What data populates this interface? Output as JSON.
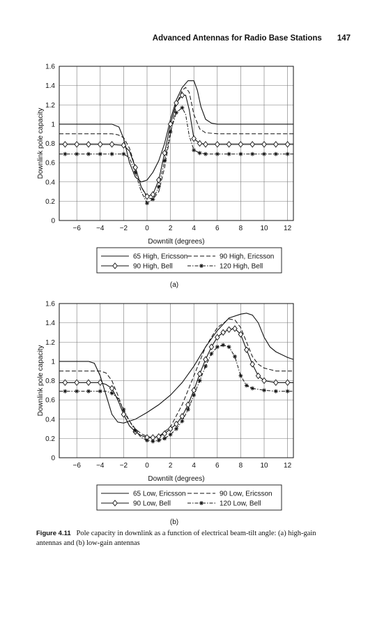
{
  "header": {
    "title": "Advanced Antennas for Radio Base Stations",
    "page_number": "147"
  },
  "caption": {
    "label": "Figure 4.11",
    "text": "Pole capacity in downlink as a function of electrical beam-tilt angle: (a) high-gain antennas and (b) low-gain antennas"
  },
  "chart_data": [
    {
      "type": "line",
      "panel_label": "(a)",
      "xlabel": "Downtilt (degrees)",
      "ylabel": "Downlink pole capacity",
      "xlim": [
        -7.5,
        12.5
      ],
      "ylim": [
        0,
        1.6
      ],
      "xticks": [
        -6,
        -4,
        -2,
        0,
        2,
        4,
        6,
        8,
        10,
        12
      ],
      "yticks": [
        0,
        0.2,
        0.4,
        0.6,
        0.8,
        1,
        1.2,
        1.4,
        1.6
      ],
      "grid": true,
      "legend_placement": "below",
      "series": [
        {
          "name": "65 High, Ericsson",
          "style": "solid",
          "marker": "none",
          "x": [
            -7.5,
            -3,
            -2.4,
            -2,
            -1.5,
            -1,
            -0.5,
            0,
            0.5,
            1,
            1.5,
            2,
            2.5,
            3,
            3.5,
            4,
            4.3,
            4.6,
            5,
            5.5,
            6,
            7,
            9,
            12.5
          ],
          "y": [
            1.0,
            1.0,
            0.97,
            0.85,
            0.6,
            0.45,
            0.4,
            0.42,
            0.5,
            0.62,
            0.8,
            1.05,
            1.25,
            1.38,
            1.45,
            1.45,
            1.35,
            1.18,
            1.05,
            1.01,
            1.0,
            1.0,
            1.0,
            1.0
          ]
        },
        {
          "name": "90 High, Ericsson",
          "style": "dash",
          "marker": "none",
          "x": [
            -7.5,
            -3,
            -2.5,
            -2,
            -1.5,
            -1,
            -0.5,
            0,
            0.5,
            1,
            1.5,
            2,
            2.5,
            3,
            3.3,
            3.6,
            4,
            4.5,
            5,
            6,
            8,
            12.5
          ],
          "y": [
            0.9,
            0.9,
            0.89,
            0.86,
            0.75,
            0.55,
            0.35,
            0.24,
            0.22,
            0.3,
            0.55,
            0.9,
            1.2,
            1.35,
            1.38,
            1.33,
            1.1,
            0.95,
            0.91,
            0.9,
            0.9,
            0.9
          ]
        },
        {
          "name": "90 High, Bell",
          "style": "solid",
          "marker": "diamond",
          "x": [
            -7.5,
            -7,
            -6,
            -5,
            -4,
            -3,
            -2,
            -1.5,
            -1,
            -0.5,
            0,
            0.5,
            1,
            1.5,
            2,
            2.5,
            3,
            3.3,
            3.6,
            4,
            4.5,
            5,
            6,
            7,
            8,
            9,
            10,
            11,
            12,
            12.5
          ],
          "y": [
            0.79,
            0.79,
            0.79,
            0.79,
            0.79,
            0.79,
            0.78,
            0.72,
            0.55,
            0.35,
            0.25,
            0.27,
            0.42,
            0.7,
            1.0,
            1.22,
            1.3,
            1.3,
            1.15,
            0.85,
            0.8,
            0.79,
            0.79,
            0.79,
            0.79,
            0.79,
            0.79,
            0.79,
            0.79,
            0.79
          ]
        },
        {
          "name": "120 High, Bell",
          "style": "dashdot",
          "marker": "star",
          "x": [
            -7.5,
            -7,
            -6,
            -5,
            -4,
            -3,
            -2,
            -1.5,
            -1,
            -0.5,
            0,
            0.5,
            1,
            1.5,
            2,
            2.5,
            3,
            3.3,
            3.6,
            4,
            4.5,
            5,
            6,
            7,
            8,
            9,
            10,
            11,
            12,
            12.5
          ],
          "y": [
            0.69,
            0.69,
            0.69,
            0.69,
            0.69,
            0.69,
            0.69,
            0.65,
            0.5,
            0.3,
            0.18,
            0.22,
            0.35,
            0.62,
            0.92,
            1.12,
            1.17,
            1.1,
            0.88,
            0.73,
            0.7,
            0.69,
            0.69,
            0.69,
            0.69,
            0.69,
            0.69,
            0.69,
            0.69,
            0.69
          ]
        }
      ]
    },
    {
      "type": "line",
      "panel_label": "(b)",
      "xlabel": "Downtilt (degrees)",
      "ylabel": "Downlink pole capacity",
      "xlim": [
        -7.5,
        12.5
      ],
      "ylim": [
        0,
        1.6
      ],
      "xticks": [
        -6,
        -4,
        -2,
        0,
        2,
        4,
        6,
        8,
        10,
        12
      ],
      "yticks": [
        0,
        0.2,
        0.4,
        0.6,
        0.8,
        1,
        1.2,
        1.4,
        1.6
      ],
      "grid": true,
      "legend_placement": "below",
      "series": [
        {
          "name": "65 Low, Ericsson",
          "style": "solid",
          "marker": "none",
          "x": [
            -7.5,
            -5,
            -4.5,
            -4,
            -3.5,
            -3,
            -2.5,
            -2,
            -1.5,
            -1,
            0,
            1,
            2,
            3,
            4,
            5,
            6,
            7,
            8,
            8.5,
            9,
            9.5,
            10,
            10.5,
            11,
            12,
            12.5
          ],
          "y": [
            1.0,
            1.0,
            0.98,
            0.85,
            0.65,
            0.45,
            0.37,
            0.36,
            0.38,
            0.4,
            0.47,
            0.55,
            0.65,
            0.78,
            0.95,
            1.15,
            1.32,
            1.45,
            1.49,
            1.5,
            1.48,
            1.4,
            1.25,
            1.15,
            1.1,
            1.04,
            1.02
          ]
        },
        {
          "name": "90 Low, Ericsson",
          "style": "dash",
          "marker": "none",
          "x": [
            -7.5,
            -4,
            -3.5,
            -3,
            -2.5,
            -2,
            -1.5,
            -1,
            -0.5,
            0,
            0.5,
            1,
            2,
            3,
            4,
            5,
            6,
            7,
            7.5,
            8,
            8.5,
            9,
            9.5,
            10,
            11,
            12,
            12.5
          ],
          "y": [
            0.9,
            0.9,
            0.88,
            0.8,
            0.65,
            0.48,
            0.38,
            0.3,
            0.25,
            0.22,
            0.21,
            0.22,
            0.32,
            0.55,
            0.85,
            1.15,
            1.35,
            1.44,
            1.43,
            1.35,
            1.2,
            1.05,
            0.97,
            0.93,
            0.9,
            0.9,
            0.9
          ]
        },
        {
          "name": "90 Low, Bell",
          "style": "solid",
          "marker": "diamond",
          "x": [
            -7.5,
            -7,
            -6,
            -5,
            -4,
            -3.5,
            -3,
            -2.5,
            -2,
            -1.5,
            -1,
            -0.5,
            0,
            0.5,
            1,
            1.5,
            2,
            2.5,
            3,
            3.5,
            4,
            4.5,
            5,
            5.5,
            6,
            6.5,
            7,
            7.5,
            8,
            8.5,
            9,
            9.5,
            10,
            11,
            12,
            12.5
          ],
          "y": [
            0.78,
            0.78,
            0.78,
            0.78,
            0.78,
            0.76,
            0.72,
            0.6,
            0.45,
            0.33,
            0.27,
            0.23,
            0.21,
            0.21,
            0.22,
            0.25,
            0.3,
            0.35,
            0.43,
            0.55,
            0.7,
            0.87,
            1.02,
            1.15,
            1.25,
            1.3,
            1.33,
            1.34,
            1.28,
            1.12,
            0.97,
            0.85,
            0.8,
            0.78,
            0.78,
            0.78
          ]
        },
        {
          "name": "120 Low, Bell",
          "style": "dashdot",
          "marker": "star",
          "x": [
            -7.5,
            -7,
            -6,
            -5,
            -4,
            -3.5,
            -3,
            -2.5,
            -2,
            -1.5,
            -1,
            -0.5,
            0,
            0.5,
            1,
            1.5,
            2,
            2.5,
            3,
            3.5,
            4,
            4.5,
            5,
            5.5,
            6,
            6.5,
            7,
            7.5,
            8,
            8.5,
            9,
            10,
            11,
            12,
            12.5
          ],
          "y": [
            0.69,
            0.69,
            0.69,
            0.69,
            0.69,
            0.69,
            0.67,
            0.62,
            0.5,
            0.38,
            0.28,
            0.21,
            0.18,
            0.17,
            0.18,
            0.2,
            0.24,
            0.3,
            0.38,
            0.5,
            0.65,
            0.8,
            0.95,
            1.08,
            1.15,
            1.17,
            1.15,
            1.05,
            0.85,
            0.75,
            0.72,
            0.7,
            0.69,
            0.69,
            0.69
          ]
        }
      ]
    }
  ]
}
